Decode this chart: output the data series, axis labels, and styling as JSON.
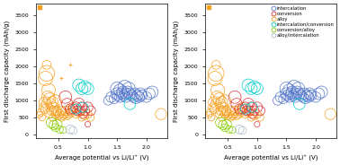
{
  "categories_order": [
    "alloy",
    "conversion",
    "intercalation",
    "intercalation_conversion",
    "conversion_alloy",
    "alloy_intercalation"
  ],
  "colors": {
    "intercalation": "#5577cc",
    "conversion": "#dd3333",
    "alloy": "#f5a020",
    "intercalation_conversion": "#00cccc",
    "conversion_alloy": "#88cc00",
    "alloy_intercalation": "#aabbcc"
  },
  "left": {
    "alloy": {
      "x": [
        0.18,
        0.2,
        0.22,
        0.24,
        0.25,
        0.27,
        0.28,
        0.3,
        0.3,
        0.32,
        0.33,
        0.35,
        0.35,
        0.37,
        0.38,
        0.4,
        0.4,
        0.42,
        0.43,
        0.45,
        0.45,
        0.47,
        0.48,
        0.5,
        0.52,
        0.55,
        0.55,
        0.58,
        0.6,
        0.62,
        0.65,
        0.68,
        0.7,
        0.72,
        0.75,
        0.8,
        0.85,
        0.9,
        0.95,
        1.0,
        1.05,
        2.25
      ],
      "y": [
        580,
        650,
        500,
        800,
        950,
        750,
        1650,
        1800,
        900,
        1100,
        1300,
        1050,
        600,
        900,
        700,
        950,
        500,
        800,
        700,
        1000,
        600,
        700,
        650,
        550,
        600,
        500,
        700,
        550,
        600,
        700,
        550,
        600,
        700,
        650,
        800,
        600,
        650,
        500,
        550,
        600,
        500,
        600
      ],
      "s": [
        25,
        35,
        30,
        45,
        60,
        50,
        130,
        160,
        70,
        100,
        120,
        90,
        40,
        75,
        55,
        80,
        35,
        65,
        55,
        85,
        40,
        55,
        50,
        40,
        45,
        35,
        55,
        40,
        45,
        55,
        40,
        45,
        55,
        50,
        60,
        45,
        50,
        35,
        40,
        45,
        35,
        80
      ]
    },
    "alloy_top": {
      "x": [
        0.18,
        0.3
      ],
      "y": [
        3750,
        2050
      ],
      "s": [
        8,
        50
      ],
      "marker": [
        "s",
        "o"
      ]
    },
    "alloy_cross": {
      "x": [
        0.55,
        0.7
      ],
      "y": [
        1650,
        2050
      ],
      "s": [
        8,
        8
      ]
    },
    "conversion": {
      "x": [
        0.62,
        0.65,
        0.7,
        0.75,
        0.8,
        0.82,
        0.85,
        0.88,
        0.9,
        0.92,
        0.95,
        1.0,
        1.0,
        1.05
      ],
      "y": [
        1100,
        900,
        750,
        750,
        800,
        700,
        900,
        700,
        800,
        600,
        700,
        800,
        300,
        700
      ],
      "s": [
        100,
        80,
        65,
        60,
        70,
        55,
        85,
        55,
        70,
        50,
        60,
        70,
        20,
        60
      ]
    },
    "intercalation": {
      "x": [
        1.35,
        1.4,
        1.45,
        1.5,
        1.5,
        1.52,
        1.55,
        1.55,
        1.58,
        1.6,
        1.62,
        1.63,
        1.65,
        1.65,
        1.68,
        1.7,
        1.72,
        1.75,
        1.78,
        1.8,
        1.82,
        1.85,
        1.88,
        1.9,
        1.92,
        2.0,
        2.05,
        2.1
      ],
      "y": [
        1000,
        1100,
        1050,
        1200,
        1350,
        1150,
        1100,
        1300,
        1200,
        1250,
        1150,
        1400,
        1200,
        1100,
        1250,
        1350,
        1200,
        1150,
        1100,
        1200,
        1050,
        1150,
        1100,
        1200,
        1150,
        1100,
        1200,
        1250
      ],
      "s": [
        55,
        70,
        60,
        90,
        110,
        75,
        70,
        100,
        85,
        90,
        75,
        115,
        85,
        70,
        90,
        105,
        85,
        75,
        70,
        85,
        60,
        75,
        70,
        85,
        75,
        70,
        85,
        90
      ]
    },
    "intercalation_conversion": {
      "x": [
        0.8,
        0.85,
        0.9,
        0.92,
        0.95,
        1.0,
        1.72
      ],
      "y": [
        750,
        1450,
        1350,
        800,
        1400,
        1350,
        900
      ],
      "s": [
        65,
        100,
        90,
        65,
        95,
        90,
        85
      ]
    },
    "conversion_alloy": {
      "x": [
        0.38,
        0.42,
        0.45,
        0.48,
        0.52,
        0.58
      ],
      "y": [
        350,
        280,
        200,
        300,
        150,
        130
      ],
      "s": [
        70,
        55,
        40,
        60,
        35,
        30
      ]
    },
    "alloy_intercalation": {
      "x": [
        0.7,
        0.75
      ],
      "y": [
        150,
        120
      ],
      "s": [
        50,
        40
      ]
    }
  },
  "right": {
    "alloy": {
      "x": [
        0.18,
        0.2,
        0.22,
        0.24,
        0.25,
        0.27,
        0.28,
        0.3,
        0.3,
        0.32,
        0.33,
        0.35,
        0.35,
        0.37,
        0.38,
        0.4,
        0.4,
        0.42,
        0.43,
        0.45,
        0.45,
        0.47,
        0.48,
        0.5,
        0.52,
        0.55,
        0.55,
        0.58,
        0.6,
        0.62,
        0.65,
        0.68,
        0.7,
        0.72,
        0.75,
        0.8,
        0.85,
        0.9,
        0.95,
        1.0,
        1.05,
        2.25
      ],
      "y": [
        580,
        650,
        500,
        800,
        950,
        750,
        1650,
        1800,
        900,
        1100,
        1300,
        1050,
        600,
        900,
        700,
        950,
        500,
        800,
        700,
        1000,
        600,
        700,
        650,
        550,
        600,
        500,
        700,
        550,
        600,
        700,
        550,
        600,
        700,
        650,
        800,
        600,
        650,
        500,
        550,
        600,
        500,
        600
      ],
      "s": [
        25,
        35,
        30,
        45,
        60,
        50,
        130,
        160,
        70,
        100,
        120,
        90,
        40,
        75,
        55,
        80,
        35,
        65,
        55,
        85,
        40,
        55,
        50,
        40,
        45,
        35,
        55,
        40,
        45,
        55,
        40,
        45,
        55,
        50,
        60,
        45,
        50,
        35,
        40,
        45,
        35,
        80
      ]
    },
    "alloy_top": {
      "x": [
        0.18,
        0.3
      ],
      "y": [
        3750,
        2050
      ],
      "s": [
        8,
        50
      ],
      "marker": [
        "s",
        "o"
      ]
    },
    "conversion": {
      "x": [
        0.62,
        0.65,
        0.7,
        0.75,
        0.8,
        0.82,
        0.85,
        0.88,
        0.9,
        0.92,
        0.95,
        1.0,
        1.0,
        1.05
      ],
      "y": [
        1100,
        900,
        750,
        750,
        800,
        700,
        900,
        700,
        800,
        600,
        700,
        800,
        300,
        700
      ],
      "s": [
        100,
        80,
        65,
        60,
        70,
        55,
        85,
        55,
        70,
        50,
        60,
        70,
        20,
        60
      ]
    },
    "intercalation": {
      "x": [
        1.35,
        1.4,
        1.45,
        1.5,
        1.5,
        1.52,
        1.55,
        1.55,
        1.58,
        1.6,
        1.62,
        1.63,
        1.65,
        1.65,
        1.68,
        1.7,
        1.72,
        1.75,
        1.78,
        1.8,
        1.82,
        1.85,
        1.88,
        1.9,
        1.92,
        2.0,
        2.05,
        2.1
      ],
      "y": [
        1000,
        1100,
        1050,
        1200,
        1350,
        1150,
        1100,
        1300,
        1200,
        1250,
        1150,
        1400,
        1200,
        1100,
        1250,
        1350,
        1200,
        1150,
        1100,
        1200,
        1050,
        1150,
        1100,
        1200,
        1150,
        1100,
        1200,
        1250
      ],
      "s": [
        55,
        70,
        60,
        90,
        110,
        75,
        70,
        100,
        85,
        90,
        75,
        115,
        85,
        70,
        90,
        105,
        85,
        75,
        70,
        85,
        60,
        75,
        70,
        85,
        75,
        70,
        85,
        90
      ]
    },
    "intercalation_conversion": {
      "x": [
        0.8,
        0.85,
        0.9,
        0.92,
        0.95,
        1.0,
        1.72
      ],
      "y": [
        750,
        1450,
        1350,
        800,
        1400,
        1350,
        900
      ],
      "s": [
        65,
        100,
        90,
        65,
        95,
        90,
        85
      ]
    },
    "conversion_alloy": {
      "x": [
        0.38,
        0.42,
        0.45,
        0.48,
        0.52,
        0.58
      ],
      "y": [
        350,
        280,
        200,
        300,
        150,
        130
      ],
      "s": [
        70,
        55,
        40,
        60,
        35,
        30
      ]
    },
    "alloy_intercalation": {
      "x": [
        0.7,
        0.75
      ],
      "y": [
        150,
        120
      ],
      "s": [
        50,
        40
      ]
    }
  },
  "legend_order": [
    "intercalation",
    "conversion",
    "alloy",
    "intercalation_conversion",
    "conversion_alloy",
    "alloy_intercalation"
  ],
  "legend_labels": {
    "intercalation": "intercalation",
    "conversion": "conversion",
    "alloy": "alloy",
    "intercalation_conversion": "intercalation/conversion",
    "conversion_alloy": "conversion/alloy",
    "alloy_intercalation": "alloy/intercalation"
  },
  "ylim": [
    -100,
    3850
  ],
  "xlim": [
    0.12,
    2.35
  ],
  "yticks": [
    0,
    500,
    1000,
    1500,
    2000,
    2500,
    3000,
    3500
  ],
  "xticks": [
    0.5,
    1.0,
    1.5,
    2.0
  ],
  "xlabel": "Average potential vs Li/Li⁺ (V)",
  "ylabel": "First discharge capacity (mAh/g)",
  "tick_fontsize": 4.5,
  "label_fontsize": 5.0,
  "legend_fontsize": 3.8
}
